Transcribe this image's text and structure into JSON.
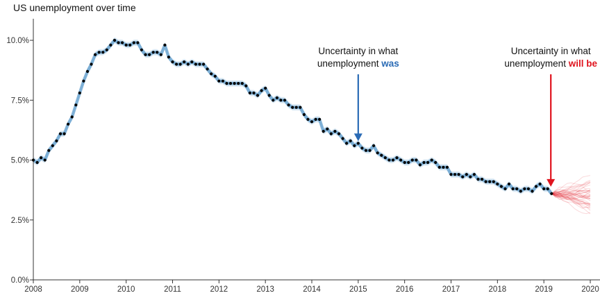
{
  "chart_data": {
    "type": "scatter",
    "title": "US unemployment over time",
    "xlabel": "",
    "ylabel": "",
    "xlim": [
      2008.0,
      2020.0
    ],
    "ylim": [
      0,
      10.9
    ],
    "x_ticks": [
      "2008",
      "2009",
      "2010",
      "2011",
      "2012",
      "2013",
      "2014",
      "2015",
      "2016",
      "2017",
      "2018",
      "2019",
      "2020"
    ],
    "y_ticks": [
      {
        "value": 0,
        "label": "0.0%"
      },
      {
        "value": 2.5,
        "label": "2.5%"
      },
      {
        "value": 5,
        "label": "5.0%"
      },
      {
        "value": 7.5,
        "label": "7.5%"
      },
      {
        "value": 10,
        "label": "10.0%"
      }
    ],
    "grid": false,
    "series": [
      {
        "name": "",
        "color": "#000000",
        "start": "2008-01",
        "values": [
          5.0,
          4.9,
          5.1,
          5.0,
          5.4,
          5.6,
          5.8,
          6.1,
          6.1,
          6.5,
          6.8,
          7.3,
          7.8,
          8.3,
          8.7,
          9.0,
          9.4,
          9.5,
          9.5,
          9.6,
          9.8,
          10.0,
          9.9,
          9.9,
          9.8,
          9.8,
          9.9,
          9.9,
          9.6,
          9.4,
          9.4,
          9.5,
          9.5,
          9.4,
          9.8,
          9.3,
          9.1,
          9.0,
          9.0,
          9.1,
          9.0,
          9.1,
          9.0,
          9.0,
          9.0,
          8.8,
          8.6,
          8.5,
          8.3,
          8.3,
          8.2,
          8.2,
          8.2,
          8.2,
          8.2,
          8.1,
          7.8,
          7.8,
          7.7,
          7.9,
          8.0,
          7.7,
          7.5,
          7.6,
          7.5,
          7.5,
          7.3,
          7.2,
          7.2,
          7.2,
          6.9,
          6.7,
          6.6,
          6.7,
          6.7,
          6.2,
          6.3,
          6.1,
          6.2,
          6.1,
          5.9,
          5.7,
          5.8,
          5.6,
          5.7,
          5.5,
          5.4,
          5.4,
          5.6,
          5.3,
          5.2,
          5.1,
          5.0,
          5.0,
          5.1,
          5.0,
          4.9,
          4.9,
          5.0,
          5.0,
          4.8,
          4.9,
          4.9,
          5.0,
          4.9,
          4.7,
          4.7,
          4.7,
          4.4,
          4.4,
          4.4,
          4.3,
          4.4,
          4.3,
          4.4,
          4.2,
          4.2,
          4.1,
          4.1,
          4.1,
          4.0,
          3.9,
          3.8,
          4.0,
          3.8,
          3.8,
          3.7,
          3.8,
          3.8,
          3.7,
          3.9,
          4.0,
          3.8,
          3.8,
          3.6
        ]
      }
    ],
    "uncertainty_band_color": "#2f7fbd",
    "forecast_color": "#e0141e",
    "annotations": [
      {
        "line1": "Uncertainty in what",
        "line2_prefix": "unemployment ",
        "line2_emph": "was",
        "arrow_to": [
          2015.0,
          5.5
        ],
        "color": "#2a6bb5"
      },
      {
        "line1": "Uncertainty in what",
        "line2_prefix": "unemployment ",
        "line2_emph": "will be",
        "arrow_to": [
          2019.15,
          3.6
        ],
        "color": "#e0141e"
      }
    ]
  }
}
